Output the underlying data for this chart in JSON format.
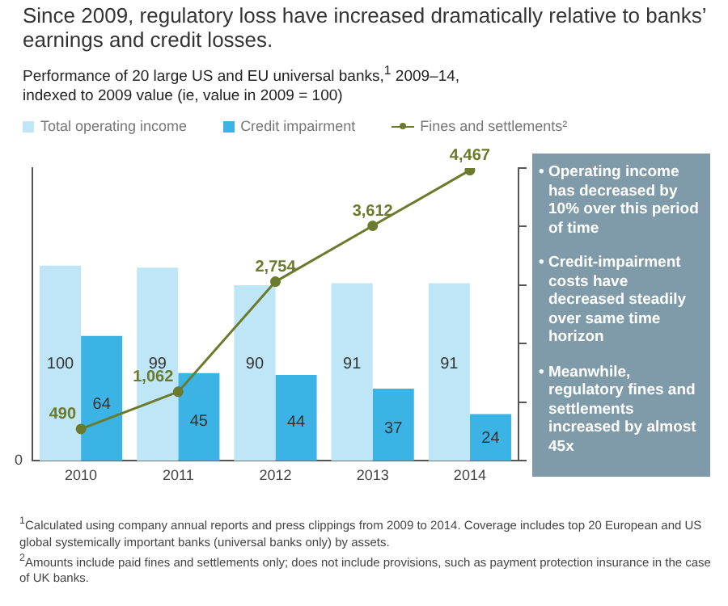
{
  "chart_data": {
    "type": "bar",
    "title": "Since 2009, regulatory loss have increased dramatically relative to banks’ earnings and credit losses.",
    "subtitle": "Performance of 20 large US and EU universal banks,$^{1}$ 2009–14, indexed to 2009 value (ie, value in 2009 = 100)",
    "categories": [
      "2010",
      "2011",
      "2012",
      "2013",
      "2014"
    ],
    "series": [
      {
        "name": "Total operating income",
        "color": "#bfe6f6",
        "values": [
          100,
          99,
          90,
          91,
          91
        ]
      },
      {
        "name": "Credit impairment",
        "color": "#3bb4e5",
        "values": [
          64,
          45,
          44,
          37,
          24
        ]
      },
      {
        "name": "Fines and settlements²",
        "type": "line",
        "axis": "y2",
        "color": "#6b7a2c",
        "marker": "circle",
        "values": [
          490,
          1062,
          2754,
          3612,
          4467
        ],
        "value_labels": [
          "490",
          "1,062",
          "2,754",
          "3,612",
          "4,467"
        ]
      }
    ],
    "ylim": [
      0,
      150
    ],
    "y2lim": [
      0,
      4500
    ],
    "y2ticks": [
      {
        "value": 0,
        "label": null
      },
      {
        "value": 900,
        "label": null
      },
      {
        "value": 1800,
        "label": null
      },
      {
        "value": 2700,
        "label": null
      },
      {
        "value": 3600,
        "label": null
      },
      {
        "value": 4500,
        "label": null
      }
    ],
    "data_labels": true,
    "grid": false,
    "legend": "top left",
    "annotations": [
      "0",
      "• Operating income has decreased by 10% over this period of time",
      "• Credit-impairment costs have decreased steadily over same time horizon",
      "• Meanwhile, regulatory fines and settlements increased by almost 45x",
      "$^{1}$Calculated using company annual reports and press clippings from 2009 to 2014. Coverage includes top 20 European and US global systemically important banks (universal banks only) by assets.",
      "$^{2}$Amounts include paid fines and settlements only; does not include provisions, such as payment protection insurance in the case of UK banks."
    ]
  }
}
